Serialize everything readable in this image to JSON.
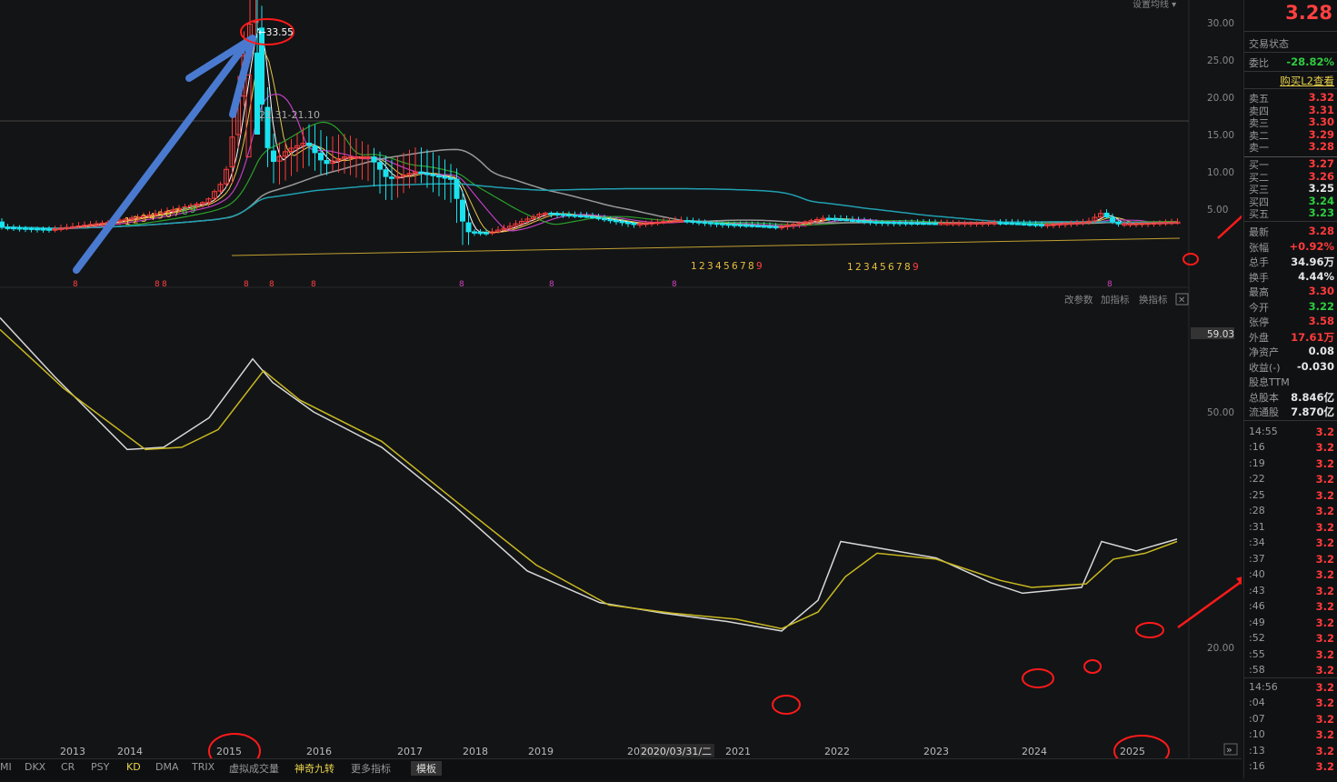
{
  "chart_toolbar": {
    "ma_settings": "设置均线 ▾"
  },
  "price_axis": [
    "30.00",
    "25.00",
    "20.00",
    "15.00",
    "10.00",
    "5.00"
  ],
  "annotations": {
    "high_label": "←33.55",
    "range_label": "21.31-21.10"
  },
  "nine_turn_seq": [
    "1",
    "2",
    "3",
    "4",
    "5",
    "6",
    "7",
    "8",
    "9"
  ],
  "buy_markers": [
    "8",
    "8",
    "8",
    "8",
    "8",
    "8",
    "8",
    "8",
    "8",
    "8"
  ],
  "indicator_toolbar": {
    "params": "改参数",
    "add": "加指标",
    "switch": "换指标",
    "close": "✕"
  },
  "kd_axis": {
    "top": "59.03",
    "mid": "50.00",
    "low": "20.00"
  },
  "years": [
    "2013",
    "2014",
    "2015",
    "2016",
    "2017",
    "2018",
    "2019",
    "20",
    "2020/03/31/二",
    "2021",
    "2022",
    "2023",
    "2024",
    "2025"
  ],
  "bottom_tabs": [
    "MI",
    "DKX",
    "CR",
    "PSY",
    "KD",
    "DMA",
    "TRIX",
    "虚拟成交量",
    "神奇九转",
    "更多指标",
    "模板"
  ],
  "expand_icon": "»",
  "quote": {
    "price": "3.28",
    "status_title": "交易状态",
    "webi_label": "委比",
    "webi_value": "-28.82%",
    "l2_link": "购买L2查看",
    "asks": [
      {
        "label": "卖五",
        "price": "3.32"
      },
      {
        "label": "卖四",
        "price": "3.31"
      },
      {
        "label": "卖三",
        "price": "3.30"
      },
      {
        "label": "卖二",
        "price": "3.29"
      },
      {
        "label": "卖一",
        "price": "3.28"
      }
    ],
    "bids": [
      {
        "label": "买一",
        "price": "3.27"
      },
      {
        "label": "买二",
        "price": "3.26"
      },
      {
        "label": "买三",
        "price": "3.25"
      },
      {
        "label": "买四",
        "price": "3.24"
      },
      {
        "label": "买五",
        "price": "3.23"
      }
    ],
    "stats": [
      {
        "label": "最新",
        "value": "3.28",
        "color": "red"
      },
      {
        "label": "张幅",
        "value": "+0.92%",
        "color": "red"
      },
      {
        "label": "总手",
        "value": "34.96万",
        "color": "white"
      },
      {
        "label": "换手",
        "value": "4.44%",
        "color": "white"
      },
      {
        "label": "最高",
        "value": "3.30",
        "color": "red"
      },
      {
        "label": "今开",
        "value": "3.22",
        "color": "green"
      },
      {
        "label": "张停",
        "value": "3.58",
        "color": "red"
      },
      {
        "label": "外盘",
        "value": "17.61万",
        "color": "red"
      },
      {
        "label": "净资产",
        "value": "0.08",
        "color": "white"
      },
      {
        "label": "收益(-)",
        "value": "-0.030",
        "color": "white"
      },
      {
        "label": "股息TTM",
        "value": "",
        "color": "white"
      },
      {
        "label": "总股本",
        "value": "8.846亿",
        "color": "white"
      },
      {
        "label": "流通股",
        "value": "7.870亿",
        "color": "white"
      }
    ],
    "ticks_1455": {
      "time": "14:55",
      "items": [
        ":16",
        ":19",
        ":22",
        ":25",
        ":28",
        ":31",
        ":34",
        ":37",
        ":40",
        ":43",
        ":46",
        ":49",
        ":52",
        ":55",
        ":58"
      ]
    },
    "ticks_1456": {
      "time": "14:56",
      "items": [
        ":04",
        ":07",
        ":10",
        ":13",
        ":16"
      ]
    },
    "tick_price": "3.2"
  },
  "colors": {
    "up": "#ff3b3b",
    "down": "#19e3ef",
    "k_line": "#d8d8d8",
    "d_line": "#c8b820",
    "ma5": "#ffffff",
    "ma10": "#e6c84a",
    "ma20": "#c040c0",
    "ma60": "#2aa02a",
    "ma120": "#999999",
    "ma250": "#20a0b0",
    "annotation_red": "#ff1a1a",
    "annotation_blue": "#4a7ad0"
  },
  "chart_data": {
    "type": "line",
    "x": [
      "2013",
      "2014",
      "2015",
      "2016",
      "2017",
      "2018",
      "2019",
      "2020",
      "2021",
      "2022",
      "2023",
      "2024",
      "2025"
    ],
    "series": [
      {
        "name": "",
        "values": [
          2.5,
          3.5,
          33.55,
          14,
          9,
          2.5,
          4.5,
          3.5,
          3.5,
          4,
          3.3,
          3.2,
          3.28
        ]
      },
      {
        "name": "",
        "values": [
          57,
          47,
          54,
          52,
          46,
          37,
          28,
          24,
          24,
          32,
          29,
          27,
          32
        ]
      },
      {
        "name": "",
        "values": [
          58,
          47,
          52,
          51,
          45,
          36,
          28,
          24,
          24,
          31,
          28,
          27,
          31
        ]
      }
    ]
  }
}
